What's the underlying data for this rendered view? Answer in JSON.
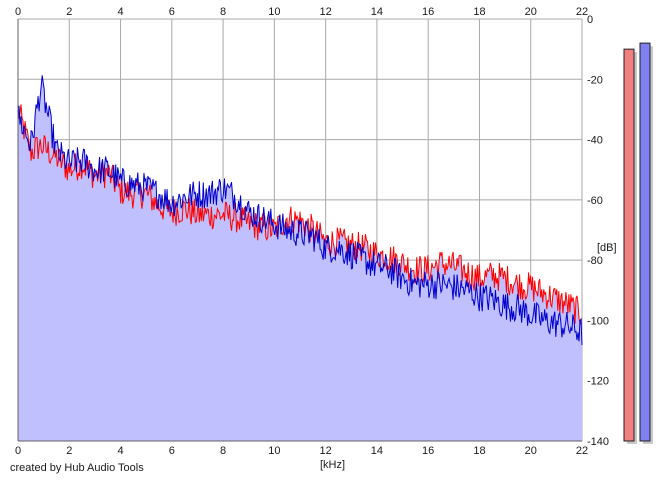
{
  "footer": {
    "credit": "created by Hub Audio Tools"
  },
  "chart_data": {
    "type": "area",
    "xlabel": "[kHz]",
    "ylabel": "[dB]",
    "xlim": [
      0,
      22
    ],
    "ylim": [
      -140,
      0
    ],
    "x_ticks": [
      "0",
      "2",
      "4",
      "6",
      "8",
      "10",
      "12",
      "14",
      "16",
      "18",
      "20",
      "22"
    ],
    "y_ticks": [
      "0",
      "-20",
      "-40",
      "-60",
      "-80",
      "-100",
      "-120",
      "-140"
    ],
    "grid": true,
    "fill_color": "#c0c0ff",
    "series": [
      {
        "color": "#ff0000",
        "x": [
          0,
          0.5,
          0.9,
          1.5,
          2,
          2.5,
          3,
          3.5,
          4,
          4.5,
          5,
          5.5,
          6,
          6.5,
          7,
          7.5,
          8,
          8.5,
          9,
          9.5,
          10,
          10.5,
          11,
          11.5,
          12,
          12.5,
          13,
          13.5,
          14,
          14.5,
          15,
          15.5,
          16,
          16.5,
          17,
          17.5,
          18,
          18.5,
          19,
          19.5,
          20,
          20.5,
          21,
          21.5,
          22
        ],
        "values": [
          -30,
          -44,
          -42,
          -46,
          -50,
          -48,
          -52,
          -51,
          -57,
          -58,
          -58,
          -62,
          -64,
          -63,
          -65,
          -65,
          -65,
          -66,
          -68,
          -69,
          -70,
          -66,
          -67,
          -70,
          -74,
          -74,
          -75,
          -76,
          -78,
          -79,
          -81,
          -83,
          -83,
          -81,
          -82,
          -84,
          -86,
          -85,
          -86,
          -88,
          -89,
          -91,
          -93,
          -95,
          -98
        ]
      },
      {
        "color": "#0000cc",
        "x": [
          0,
          0.5,
          0.9,
          1.5,
          2,
          2.5,
          3,
          3.5,
          4,
          4.5,
          5,
          5.5,
          6,
          6.5,
          7,
          7.5,
          8,
          8.5,
          9,
          9.5,
          10,
          10.5,
          11,
          11.5,
          12,
          12.5,
          13,
          13.5,
          14,
          14.5,
          15,
          15.5,
          16,
          16.5,
          17,
          17.5,
          18,
          18.5,
          19,
          19.5,
          20,
          20.5,
          21,
          21.5,
          22
        ],
        "values": [
          -32,
          -42,
          -22,
          -44,
          -48,
          -47,
          -50,
          -50,
          -54,
          -55,
          -56,
          -58,
          -61,
          -59,
          -58,
          -58,
          -56,
          -59,
          -64,
          -66,
          -68,
          -70,
          -71,
          -72,
          -76,
          -76,
          -78,
          -80,
          -82,
          -83,
          -86,
          -88,
          -88,
          -88,
          -89,
          -90,
          -92,
          -93,
          -95,
          -96,
          -98,
          -100,
          -101,
          -102,
          -104
        ]
      }
    ],
    "level_meters": [
      {
        "color": "#f08080",
        "level_db": -10
      },
      {
        "color": "#8080f0",
        "level_db": -8
      }
    ]
  }
}
